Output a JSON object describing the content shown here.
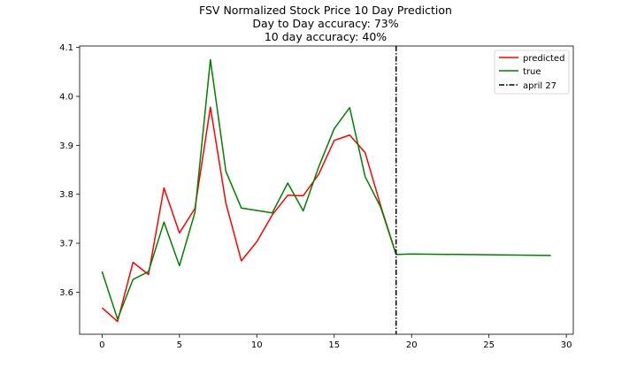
{
  "chart_data": {
    "type": "line",
    "title_lines": [
      "FSV Normalized Stock Price 10 Day Prediction",
      "Day to Day accuracy: 73%",
      "10 day accuracy: 40%"
    ],
    "xlabel": "",
    "ylabel": "",
    "xlim": [
      -1.45,
      30.45
    ],
    "ylim": [
      3.514,
      4.103
    ],
    "x_ticks": [
      0,
      5,
      10,
      15,
      20,
      25,
      30
    ],
    "y_ticks": [
      3.6,
      3.7,
      3.8,
      3.9,
      4.0,
      4.1
    ],
    "y_tick_labels": [
      "3.6",
      "3.7",
      "3.8",
      "3.9",
      "4.0",
      "4.1"
    ],
    "grid": false,
    "legend_position": "top-right",
    "series": [
      {
        "name": "predicted",
        "color": "#ff0000",
        "style": "solid",
        "x": [
          0,
          1,
          2,
          3,
          4,
          5,
          6,
          7,
          8,
          9,
          10,
          11,
          12,
          13,
          14,
          15,
          16,
          17,
          18,
          19
        ],
        "values": [
          3.568,
          3.54,
          3.661,
          3.636,
          3.813,
          3.721,
          3.771,
          3.978,
          3.782,
          3.664,
          3.703,
          3.758,
          3.798,
          3.797,
          3.841,
          3.91,
          3.921,
          3.885,
          3.777,
          3.677
        ]
      },
      {
        "name": "true",
        "color": "#008000",
        "style": "solid",
        "x": [
          0,
          1,
          2,
          3,
          4,
          5,
          6,
          7,
          8,
          9,
          10,
          11,
          12,
          13,
          14,
          15,
          16,
          17,
          18,
          19,
          20,
          29
        ],
        "values": [
          3.642,
          3.545,
          3.626,
          3.642,
          3.743,
          3.654,
          3.763,
          4.075,
          3.847,
          3.772,
          3.767,
          3.762,
          3.823,
          3.766,
          3.856,
          3.934,
          3.977,
          3.836,
          3.774,
          3.677,
          3.678,
          3.675
        ]
      }
    ],
    "vertical_line": {
      "name": "april 27",
      "x": 19,
      "color": "#000000",
      "style": "dashdot"
    }
  }
}
